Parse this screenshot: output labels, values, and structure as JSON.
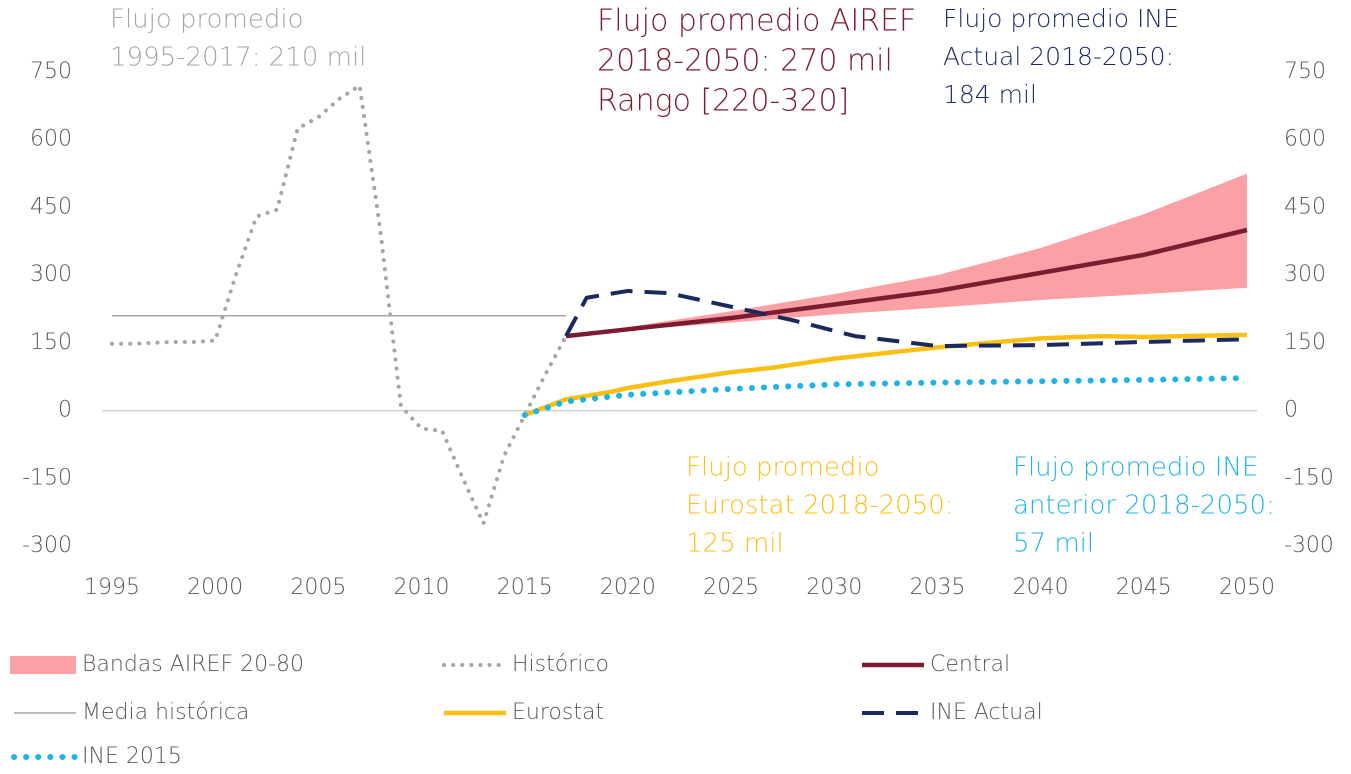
{
  "chart_data": {
    "type": "line",
    "xlim": [
      1995,
      2050
    ],
    "xticks": [
      1995,
      2000,
      2005,
      2010,
      2015,
      2020,
      2025,
      2030,
      2035,
      2040,
      2045,
      2050
    ],
    "ylim": [
      -300,
      750
    ],
    "yticks": [
      -300,
      -150,
      0,
      150,
      300,
      450,
      600,
      750
    ],
    "y2lim": [
      -300,
      750
    ],
    "y2ticks": [
      -300,
      -150,
      0,
      150,
      300,
      450,
      600,
      750
    ],
    "annotations": [
      {
        "lines": [
          "Flujo promedio",
          "1995-2017: 210 mil"
        ],
        "color": "#a6a6a6"
      },
      {
        "lines": [
          "Flujo promedio AIREF",
          "2018-2050: 270 mil",
          "Rango [220-320]"
        ],
        "color": "#7b1c30"
      },
      {
        "lines": [
          "Flujo promedio INE",
          "Actual 2018-2050:",
          "184 mil"
        ],
        "color": "#1b2a5e"
      },
      {
        "lines": [
          "Flujo promedio",
          "Eurostat 2018-2050:",
          "125 mil"
        ],
        "color": "#fbbf14"
      },
      {
        "lines": [
          "Flujo promedio INE",
          "anterior 2018-2050:",
          "57 mil"
        ],
        "color": "#1fb4e6"
      }
    ],
    "series": [
      {
        "name": "Bandas AIREF 20-80",
        "color": "#fba0a5",
        "dash": "band",
        "x": [
          2017,
          2020,
          2025,
          2030,
          2035,
          2040,
          2045,
          2050
        ],
        "high": [
          165,
          185,
          220,
          258,
          300,
          360,
          435,
          525
        ],
        "low": [
          165,
          178,
          195,
          213,
          228,
          245,
          258,
          272
        ]
      },
      {
        "name": "Histórico",
        "color": "#a6a6a6",
        "dash": "dotted",
        "x": [
          1995,
          1996,
          1997,
          1998,
          1999,
          2000,
          2001,
          2002,
          2003,
          2004,
          2005,
          2006,
          2007,
          2008,
          2009,
          2010,
          2011,
          2012,
          2013,
          2014,
          2015,
          2016,
          2017
        ],
        "values": [
          148,
          148,
          150,
          152,
          152,
          155,
          300,
          430,
          445,
          625,
          650,
          690,
          720,
          400,
          10,
          -40,
          -45,
          -150,
          -250,
          -100,
          -10,
          80,
          165
        ]
      },
      {
        "name": "Central",
        "color": "#7b1c30",
        "dash": "solid",
        "x": [
          2017,
          2020,
          2025,
          2030,
          2035,
          2040,
          2045,
          2050
        ],
        "values": [
          165,
          180,
          205,
          235,
          265,
          305,
          345,
          400
        ]
      },
      {
        "name": "Media histórica",
        "color": "#a6a6a6",
        "dash": "thin",
        "x": [
          1995,
          2017
        ],
        "values": [
          210,
          210
        ]
      },
      {
        "name": "Eurostat",
        "color": "#fbbf14",
        "dash": "solid",
        "x": [
          2015,
          2017,
          2019,
          2020,
          2022,
          2025,
          2027,
          2030,
          2035,
          2040,
          2043,
          2045,
          2050
        ],
        "values": [
          -10,
          25,
          40,
          50,
          65,
          85,
          95,
          115,
          140,
          160,
          165,
          163,
          168
        ]
      },
      {
        "name": "INE Actual",
        "color": "#1b2a5e",
        "dash": "dashed",
        "x": [
          2017,
          2018,
          2020,
          2022,
          2025,
          2028,
          2031,
          2035,
          2040,
          2045,
          2050
        ],
        "values": [
          165,
          250,
          265,
          260,
          230,
          200,
          165,
          143,
          145,
          152,
          158
        ]
      },
      {
        "name": "INE 2015",
        "color": "#1fb4e6",
        "dash": "bigdots",
        "x": [
          2015,
          2017,
          2020,
          2025,
          2030,
          2035,
          2040,
          2045,
          2050
        ],
        "values": [
          -10,
          20,
          35,
          48,
          58,
          62,
          65,
          68,
          72
        ]
      }
    ]
  }
}
